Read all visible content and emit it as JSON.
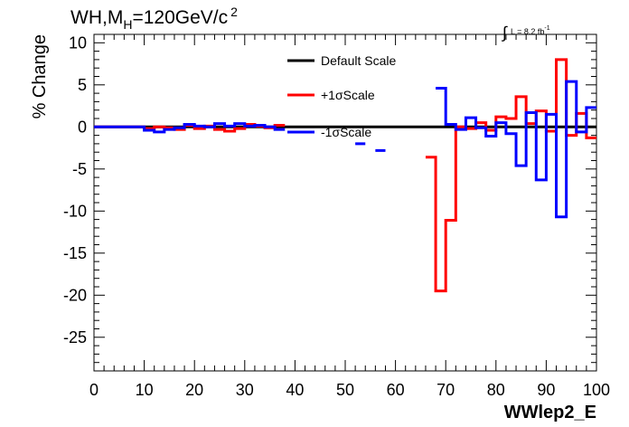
{
  "chart_data": {
    "type": "line",
    "title_prefix": "WH,M",
    "title_sub": "H",
    "title_main": "=120GeV/c",
    "title_sup": "2",
    "lumi_prefix": "L = 8.2 fb",
    "lumi_sup": "-1",
    "xlabel": "WWlep2_E",
    "ylabel": "% Change",
    "xlim": [
      0,
      100
    ],
    "ylim": [
      -29,
      11
    ],
    "xticks": [
      0,
      10,
      20,
      30,
      40,
      50,
      60,
      70,
      80,
      90,
      100
    ],
    "yticks": [
      10,
      5,
      0,
      -5,
      -10,
      -15,
      -20,
      -25
    ],
    "legend_position": "top-center",
    "colors": {
      "default": "#000000",
      "plus": "#ff0000",
      "minus": "#0000ff"
    },
    "series": [
      {
        "name": "Default Scale",
        "color": "#000000",
        "bins": [
          [
            0,
            100,
            0
          ]
        ]
      },
      {
        "name": "+1σScale",
        "color": "#ff0000",
        "bins": [
          [
            0,
            10,
            0
          ],
          [
            10,
            12,
            -0.2
          ],
          [
            12,
            14,
            0
          ],
          [
            14,
            16,
            -0.1
          ],
          [
            16,
            18,
            -0.3
          ],
          [
            18,
            20,
            0.2
          ],
          [
            20,
            22,
            -0.2
          ],
          [
            22,
            24,
            0.1
          ],
          [
            24,
            26,
            -0.3
          ],
          [
            26,
            28,
            -0.5
          ],
          [
            28,
            30,
            -0.2
          ],
          [
            30,
            32,
            0.3
          ],
          [
            32,
            34,
            0.1
          ],
          [
            34,
            36,
            -0.1
          ],
          [
            36,
            38,
            0.2
          ],
          [
            66,
            68,
            -3.6
          ],
          [
            68,
            70,
            -19.5
          ],
          [
            70,
            72,
            -11.1
          ],
          [
            72,
            74,
            0
          ],
          [
            74,
            76,
            -0.2
          ],
          [
            76,
            78,
            0.5
          ],
          [
            78,
            80,
            -0.4
          ],
          [
            80,
            82,
            1.2
          ],
          [
            82,
            84,
            1.0
          ],
          [
            84,
            86,
            3.6
          ],
          [
            86,
            88,
            0.4
          ],
          [
            88,
            90,
            1.9
          ],
          [
            90,
            92,
            -0.5
          ],
          [
            92,
            94,
            8.0
          ],
          [
            94,
            96,
            -1.0
          ],
          [
            96,
            98,
            1.6
          ],
          [
            98,
            100,
            -1.3
          ]
        ]
      },
      {
        "name": "-1σScale",
        "color": "#0000ff",
        "bins": [
          [
            0,
            10,
            0
          ],
          [
            10,
            12,
            -0.4
          ],
          [
            12,
            14,
            -0.6
          ],
          [
            14,
            16,
            -0.3
          ],
          [
            16,
            18,
            -0.1
          ],
          [
            18,
            20,
            0.3
          ],
          [
            20,
            22,
            0.1
          ],
          [
            22,
            24,
            0
          ],
          [
            24,
            26,
            0.4
          ],
          [
            26,
            28,
            0.1
          ],
          [
            28,
            30,
            0.4
          ],
          [
            30,
            32,
            0.1
          ],
          [
            32,
            34,
            0.2
          ],
          [
            34,
            36,
            0
          ],
          [
            36,
            38,
            -0.3
          ],
          [
            52,
            54,
            -2.0
          ],
          [
            56,
            58,
            -2.8
          ],
          [
            68,
            70,
            4.6
          ],
          [
            70,
            72,
            0.3
          ],
          [
            72,
            74,
            -0.3
          ],
          [
            74,
            76,
            1.1
          ],
          [
            76,
            78,
            -0.1
          ],
          [
            78,
            80,
            -1.1
          ],
          [
            80,
            82,
            0.5
          ],
          [
            82,
            84,
            -0.8
          ],
          [
            84,
            86,
            -4.6
          ],
          [
            86,
            88,
            1.7
          ],
          [
            88,
            90,
            -6.3
          ],
          [
            90,
            92,
            1.5
          ],
          [
            92,
            94,
            -10.7
          ],
          [
            94,
            96,
            5.4
          ],
          [
            96,
            98,
            -0.6
          ],
          [
            98,
            100,
            2.3
          ]
        ]
      }
    ]
  }
}
